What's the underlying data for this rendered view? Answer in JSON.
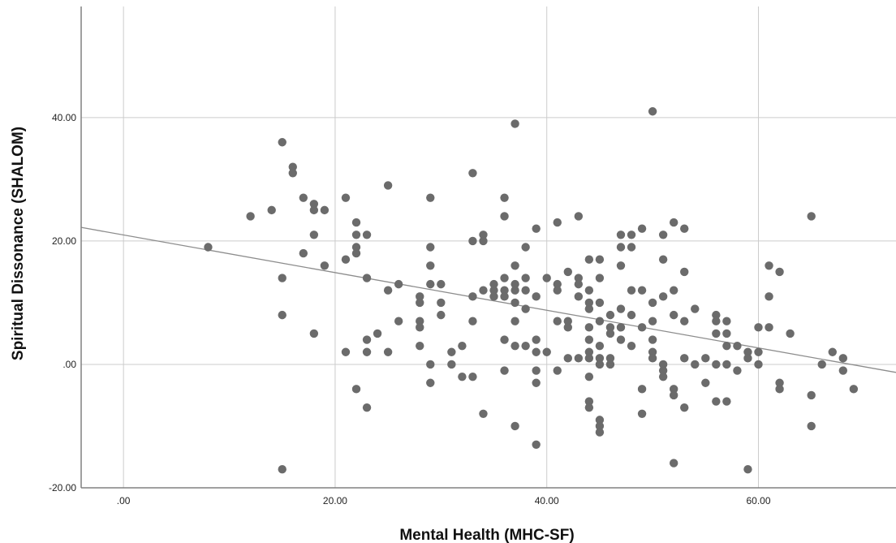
{
  "chart_data": {
    "type": "scatter",
    "title": "",
    "xlabel": "Mental Health (MHC-SF)",
    "ylabel": "Spiritual Dissonance (SHALOM)",
    "xlim": [
      -4,
      73
    ],
    "ylim": [
      -20,
      58
    ],
    "xticks": [
      0,
      20,
      40,
      60
    ],
    "xtick_labels": [
      ".00",
      "20.00",
      "40.00",
      "60.00"
    ],
    "yticks": [
      -20,
      0,
      20,
      40
    ],
    "ytick_labels": [
      "-20.00",
      ".00",
      "20.00",
      "40.00"
    ],
    "grid": true,
    "legend": "none",
    "colors": {
      "points": "#6b6b6b",
      "fit_line": "#8c8c8c",
      "grid": "#cccccc",
      "axis": "#808080"
    },
    "fit_line": {
      "x": [
        -4,
        73
      ],
      "y": [
        22.2,
        -1.3
      ]
    },
    "points": [
      {
        "x": 8,
        "y": 19
      },
      {
        "x": 12,
        "y": 24
      },
      {
        "x": 14,
        "y": 25
      },
      {
        "x": 15,
        "y": 36
      },
      {
        "x": 15,
        "y": 14
      },
      {
        "x": 15,
        "y": 8
      },
      {
        "x": 15,
        "y": -17
      },
      {
        "x": 16,
        "y": 32
      },
      {
        "x": 16,
        "y": 31
      },
      {
        "x": 17,
        "y": 27
      },
      {
        "x": 17,
        "y": 18
      },
      {
        "x": 18,
        "y": 26
      },
      {
        "x": 18,
        "y": 25
      },
      {
        "x": 18,
        "y": 21
      },
      {
        "x": 18,
        "y": 5
      },
      {
        "x": 19,
        "y": 25
      },
      {
        "x": 19,
        "y": 16
      },
      {
        "x": 21,
        "y": 27
      },
      {
        "x": 21,
        "y": 17
      },
      {
        "x": 21,
        "y": 2
      },
      {
        "x": 22,
        "y": 23
      },
      {
        "x": 22,
        "y": 21
      },
      {
        "x": 22,
        "y": 19
      },
      {
        "x": 22,
        "y": 18
      },
      {
        "x": 22,
        "y": -4
      },
      {
        "x": 23,
        "y": 21
      },
      {
        "x": 23,
        "y": 14
      },
      {
        "x": 23,
        "y": 4
      },
      {
        "x": 23,
        "y": 2
      },
      {
        "x": 23,
        "y": -7
      },
      {
        "x": 24,
        "y": 5
      },
      {
        "x": 25,
        "y": 29
      },
      {
        "x": 25,
        "y": 12
      },
      {
        "x": 25,
        "y": 2
      },
      {
        "x": 26,
        "y": 13
      },
      {
        "x": 26,
        "y": 7
      },
      {
        "x": 28,
        "y": 11
      },
      {
        "x": 28,
        "y": 10
      },
      {
        "x": 28,
        "y": 7
      },
      {
        "x": 28,
        "y": 6
      },
      {
        "x": 28,
        "y": 3
      },
      {
        "x": 29,
        "y": 27
      },
      {
        "x": 29,
        "y": 19
      },
      {
        "x": 29,
        "y": 16
      },
      {
        "x": 29,
        "y": 13
      },
      {
        "x": 29,
        "y": 0
      },
      {
        "x": 29,
        "y": -3
      },
      {
        "x": 30,
        "y": 13
      },
      {
        "x": 30,
        "y": 10
      },
      {
        "x": 30,
        "y": 8
      },
      {
        "x": 31,
        "y": 2
      },
      {
        "x": 31,
        "y": 0
      },
      {
        "x": 32,
        "y": 3
      },
      {
        "x": 32,
        "y": -2
      },
      {
        "x": 33,
        "y": 31
      },
      {
        "x": 33,
        "y": 20
      },
      {
        "x": 33,
        "y": 11
      },
      {
        "x": 33,
        "y": 7
      },
      {
        "x": 33,
        "y": -2
      },
      {
        "x": 34,
        "y": 21
      },
      {
        "x": 34,
        "y": 20
      },
      {
        "x": 34,
        "y": 12
      },
      {
        "x": 34,
        "y": -8
      },
      {
        "x": 35,
        "y": 13
      },
      {
        "x": 35,
        "y": 12
      },
      {
        "x": 35,
        "y": 11
      },
      {
        "x": 36,
        "y": 27
      },
      {
        "x": 36,
        "y": 24
      },
      {
        "x": 36,
        "y": 14
      },
      {
        "x": 36,
        "y": 12
      },
      {
        "x": 36,
        "y": 11
      },
      {
        "x": 36,
        "y": 4
      },
      {
        "x": 36,
        "y": -1
      },
      {
        "x": 37,
        "y": 39
      },
      {
        "x": 37,
        "y": 16
      },
      {
        "x": 37,
        "y": 13
      },
      {
        "x": 37,
        "y": 12
      },
      {
        "x": 37,
        "y": 10
      },
      {
        "x": 37,
        "y": 7
      },
      {
        "x": 37,
        "y": 3
      },
      {
        "x": 37,
        "y": -10
      },
      {
        "x": 38,
        "y": 19
      },
      {
        "x": 38,
        "y": 14
      },
      {
        "x": 38,
        "y": 12
      },
      {
        "x": 38,
        "y": 9
      },
      {
        "x": 38,
        "y": 3
      },
      {
        "x": 39,
        "y": 22
      },
      {
        "x": 39,
        "y": 11
      },
      {
        "x": 39,
        "y": 4
      },
      {
        "x": 39,
        "y": 2
      },
      {
        "x": 39,
        "y": -1
      },
      {
        "x": 39,
        "y": -3
      },
      {
        "x": 39,
        "y": -13
      },
      {
        "x": 40,
        "y": 14
      },
      {
        "x": 40,
        "y": 2
      },
      {
        "x": 41,
        "y": 23
      },
      {
        "x": 41,
        "y": 13
      },
      {
        "x": 41,
        "y": 12
      },
      {
        "x": 41,
        "y": 7
      },
      {
        "x": 41,
        "y": -1
      },
      {
        "x": 42,
        "y": 15
      },
      {
        "x": 42,
        "y": 7
      },
      {
        "x": 42,
        "y": 6
      },
      {
        "x": 42,
        "y": 1
      },
      {
        "x": 43,
        "y": 24
      },
      {
        "x": 43,
        "y": 14
      },
      {
        "x": 43,
        "y": 13
      },
      {
        "x": 43,
        "y": 11
      },
      {
        "x": 43,
        "y": 1
      },
      {
        "x": 44,
        "y": 17
      },
      {
        "x": 44,
        "y": 12
      },
      {
        "x": 44,
        "y": 10
      },
      {
        "x": 44,
        "y": 9
      },
      {
        "x": 44,
        "y": 6
      },
      {
        "x": 44,
        "y": 4
      },
      {
        "x": 44,
        "y": 2
      },
      {
        "x": 44,
        "y": 1
      },
      {
        "x": 44,
        "y": -2
      },
      {
        "x": 44,
        "y": -6
      },
      {
        "x": 44,
        "y": -7
      },
      {
        "x": 45,
        "y": 17
      },
      {
        "x": 45,
        "y": 14
      },
      {
        "x": 45,
        "y": 10
      },
      {
        "x": 45,
        "y": 7
      },
      {
        "x": 45,
        "y": 3
      },
      {
        "x": 45,
        "y": 1
      },
      {
        "x": 45,
        "y": 0
      },
      {
        "x": 45,
        "y": -9
      },
      {
        "x": 45,
        "y": -10
      },
      {
        "x": 45,
        "y": -11
      },
      {
        "x": 46,
        "y": 8
      },
      {
        "x": 46,
        "y": 6
      },
      {
        "x": 46,
        "y": 5
      },
      {
        "x": 46,
        "y": 1
      },
      {
        "x": 46,
        "y": 0
      },
      {
        "x": 47,
        "y": 21
      },
      {
        "x": 47,
        "y": 19
      },
      {
        "x": 47,
        "y": 16
      },
      {
        "x": 47,
        "y": 9
      },
      {
        "x": 47,
        "y": 6
      },
      {
        "x": 47,
        "y": 4
      },
      {
        "x": 48,
        "y": 21
      },
      {
        "x": 48,
        "y": 19
      },
      {
        "x": 48,
        "y": 12
      },
      {
        "x": 48,
        "y": 8
      },
      {
        "x": 48,
        "y": 3
      },
      {
        "x": 49,
        "y": 22
      },
      {
        "x": 49,
        "y": 12
      },
      {
        "x": 49,
        "y": 6
      },
      {
        "x": 49,
        "y": -4
      },
      {
        "x": 49,
        "y": -8
      },
      {
        "x": 50,
        "y": 41
      },
      {
        "x": 50,
        "y": 10
      },
      {
        "x": 50,
        "y": 7
      },
      {
        "x": 50,
        "y": 4
      },
      {
        "x": 50,
        "y": 2
      },
      {
        "x": 50,
        "y": 1
      },
      {
        "x": 51,
        "y": 21
      },
      {
        "x": 51,
        "y": 17
      },
      {
        "x": 51,
        "y": 11
      },
      {
        "x": 51,
        "y": 0
      },
      {
        "x": 51,
        "y": -1
      },
      {
        "x": 51,
        "y": -2
      },
      {
        "x": 52,
        "y": 23
      },
      {
        "x": 52,
        "y": 12
      },
      {
        "x": 52,
        "y": 8
      },
      {
        "x": 52,
        "y": -4
      },
      {
        "x": 52,
        "y": -5
      },
      {
        "x": 52,
        "y": -16
      },
      {
        "x": 53,
        "y": 22
      },
      {
        "x": 53,
        "y": 15
      },
      {
        "x": 53,
        "y": 7
      },
      {
        "x": 53,
        "y": 1
      },
      {
        "x": 53,
        "y": -7
      },
      {
        "x": 54,
        "y": 9
      },
      {
        "x": 54,
        "y": 0
      },
      {
        "x": 55,
        "y": 1
      },
      {
        "x": 55,
        "y": -3
      },
      {
        "x": 56,
        "y": 8
      },
      {
        "x": 56,
        "y": 7
      },
      {
        "x": 56,
        "y": 5
      },
      {
        "x": 56,
        "y": 0
      },
      {
        "x": 56,
        "y": -6
      },
      {
        "x": 57,
        "y": 7
      },
      {
        "x": 57,
        "y": 5
      },
      {
        "x": 57,
        "y": 3
      },
      {
        "x": 57,
        "y": 0
      },
      {
        "x": 57,
        "y": -6
      },
      {
        "x": 58,
        "y": 3
      },
      {
        "x": 58,
        "y": -1
      },
      {
        "x": 59,
        "y": 2
      },
      {
        "x": 59,
        "y": 1
      },
      {
        "x": 59,
        "y": -17
      },
      {
        "x": 60,
        "y": 6
      },
      {
        "x": 60,
        "y": 2
      },
      {
        "x": 60,
        "y": 0
      },
      {
        "x": 61,
        "y": 16
      },
      {
        "x": 61,
        "y": 11
      },
      {
        "x": 61,
        "y": 6
      },
      {
        "x": 62,
        "y": 15
      },
      {
        "x": 62,
        "y": -3
      },
      {
        "x": 62,
        "y": -4
      },
      {
        "x": 63,
        "y": 5
      },
      {
        "x": 65,
        "y": 24
      },
      {
        "x": 65,
        "y": -5
      },
      {
        "x": 65,
        "y": -10
      },
      {
        "x": 66,
        "y": 0
      },
      {
        "x": 67,
        "y": 2
      },
      {
        "x": 68,
        "y": 1
      },
      {
        "x": 68,
        "y": -1
      },
      {
        "x": 69,
        "y": -4
      }
    ]
  }
}
